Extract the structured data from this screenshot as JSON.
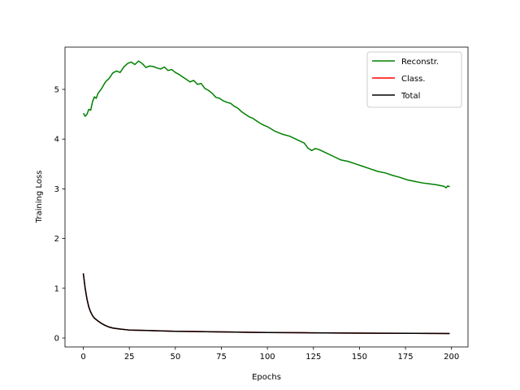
{
  "chart_data": {
    "type": "line",
    "title": "",
    "xlabel": "Epochs",
    "ylabel": "Training Loss",
    "xlim": [
      -9.95,
      208.95
    ],
    "ylim": [
      -0.18,
      5.85
    ],
    "xticks": [
      0,
      25,
      50,
      75,
      100,
      125,
      150,
      175,
      200
    ],
    "yticks": [
      0,
      1,
      2,
      3,
      4,
      5
    ],
    "grid": false,
    "legend": {
      "placement": "top-right"
    },
    "series": [
      {
        "name": "Reconstr.",
        "color": "#008000",
        "anchors": [
          [
            0,
            4.52
          ],
          [
            1,
            4.46
          ],
          [
            2,
            4.5
          ],
          [
            3,
            4.6
          ],
          [
            4,
            4.58
          ],
          [
            5,
            4.75
          ],
          [
            6,
            4.85
          ],
          [
            7,
            4.82
          ],
          [
            8,
            4.92
          ],
          [
            10,
            5.02
          ],
          [
            12,
            5.15
          ],
          [
            14,
            5.22
          ],
          [
            16,
            5.33
          ],
          [
            18,
            5.37
          ],
          [
            20,
            5.34
          ],
          [
            22,
            5.45
          ],
          [
            24,
            5.52
          ],
          [
            26,
            5.55
          ],
          [
            28,
            5.5
          ],
          [
            30,
            5.57
          ],
          [
            32,
            5.52
          ],
          [
            34,
            5.44
          ],
          [
            36,
            5.47
          ],
          [
            38,
            5.46
          ],
          [
            40,
            5.43
          ],
          [
            42,
            5.41
          ],
          [
            44,
            5.45
          ],
          [
            46,
            5.38
          ],
          [
            48,
            5.4
          ],
          [
            50,
            5.34
          ],
          [
            52,
            5.3
          ],
          [
            54,
            5.25
          ],
          [
            56,
            5.2
          ],
          [
            58,
            5.15
          ],
          [
            60,
            5.18
          ],
          [
            62,
            5.1
          ],
          [
            64,
            5.12
          ],
          [
            66,
            5.02
          ],
          [
            68,
            4.98
          ],
          [
            70,
            4.92
          ],
          [
            72,
            4.84
          ],
          [
            74,
            4.82
          ],
          [
            76,
            4.77
          ],
          [
            78,
            4.74
          ],
          [
            80,
            4.72
          ],
          [
            82,
            4.66
          ],
          [
            84,
            4.62
          ],
          [
            86,
            4.55
          ],
          [
            88,
            4.5
          ],
          [
            90,
            4.45
          ],
          [
            92,
            4.42
          ],
          [
            94,
            4.37
          ],
          [
            96,
            4.32
          ],
          [
            98,
            4.28
          ],
          [
            100,
            4.25
          ],
          [
            104,
            4.16
          ],
          [
            108,
            4.1
          ],
          [
            112,
            4.06
          ],
          [
            116,
            3.99
          ],
          [
            120,
            3.92
          ],
          [
            122,
            3.82
          ],
          [
            124,
            3.77
          ],
          [
            126,
            3.81
          ],
          [
            128,
            3.79
          ],
          [
            132,
            3.72
          ],
          [
            136,
            3.65
          ],
          [
            140,
            3.58
          ],
          [
            144,
            3.55
          ],
          [
            148,
            3.5
          ],
          [
            152,
            3.45
          ],
          [
            156,
            3.4
          ],
          [
            160,
            3.35
          ],
          [
            164,
            3.32
          ],
          [
            168,
            3.27
          ],
          [
            172,
            3.23
          ],
          [
            176,
            3.18
          ],
          [
            180,
            3.15
          ],
          [
            184,
            3.12
          ],
          [
            188,
            3.1
          ],
          [
            192,
            3.08
          ],
          [
            196,
            3.05
          ],
          [
            197,
            3.02
          ],
          [
            198,
            3.06
          ],
          [
            199,
            3.04
          ]
        ]
      },
      {
        "name": "Class.",
        "color": "#ff0000",
        "anchors": [
          [
            0,
            1.3
          ],
          [
            1,
            1.0
          ],
          [
            2,
            0.78
          ],
          [
            3,
            0.62
          ],
          [
            4,
            0.52
          ],
          [
            5,
            0.45
          ],
          [
            6,
            0.4
          ],
          [
            8,
            0.34
          ],
          [
            10,
            0.29
          ],
          [
            12,
            0.25
          ],
          [
            14,
            0.22
          ],
          [
            16,
            0.2
          ],
          [
            18,
            0.19
          ],
          [
            20,
            0.18
          ],
          [
            25,
            0.16
          ],
          [
            30,
            0.155
          ],
          [
            35,
            0.15
          ],
          [
            40,
            0.145
          ],
          [
            50,
            0.135
          ],
          [
            60,
            0.13
          ],
          [
            70,
            0.125
          ],
          [
            80,
            0.12
          ],
          [
            90,
            0.115
          ],
          [
            100,
            0.11
          ],
          [
            120,
            0.105
          ],
          [
            140,
            0.1
          ],
          [
            160,
            0.095
          ],
          [
            180,
            0.093
          ],
          [
            199,
            0.09
          ]
        ]
      },
      {
        "name": "Total",
        "color": "#000000",
        "anchors": [
          [
            0,
            1.3
          ],
          [
            1,
            1.0
          ],
          [
            2,
            0.78
          ],
          [
            3,
            0.62
          ],
          [
            4,
            0.52
          ],
          [
            5,
            0.45
          ],
          [
            6,
            0.4
          ],
          [
            8,
            0.34
          ],
          [
            10,
            0.29
          ],
          [
            12,
            0.25
          ],
          [
            14,
            0.22
          ],
          [
            16,
            0.2
          ],
          [
            18,
            0.19
          ],
          [
            20,
            0.18
          ],
          [
            25,
            0.16
          ],
          [
            30,
            0.155
          ],
          [
            35,
            0.15
          ],
          [
            40,
            0.145
          ],
          [
            50,
            0.135
          ],
          [
            60,
            0.13
          ],
          [
            70,
            0.125
          ],
          [
            80,
            0.12
          ],
          [
            90,
            0.115
          ],
          [
            100,
            0.11
          ],
          [
            120,
            0.105
          ],
          [
            140,
            0.1
          ],
          [
            160,
            0.095
          ],
          [
            180,
            0.093
          ],
          [
            199,
            0.09
          ]
        ]
      }
    ]
  }
}
